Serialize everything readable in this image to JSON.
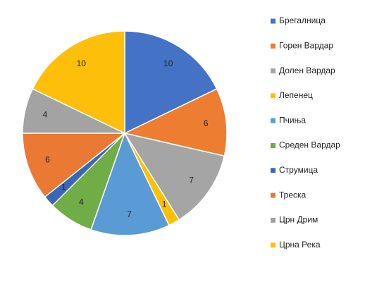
{
  "chart_data": {
    "type": "pie",
    "categories": [
      "Брегалница",
      "Горен Вардар",
      "Долен Вардар",
      "Лепенец",
      "Пчиња",
      "Среден Вардар",
      "Струмица",
      "Треска",
      "Црн Дрим",
      "Црна Река"
    ],
    "values": [
      10,
      6,
      7,
      1,
      7,
      4,
      1,
      6,
      4,
      10
    ],
    "colors": [
      "#4472c4",
      "#ed7d31",
      "#a5a5a5",
      "#ffc000",
      "#5b9bd5",
      "#70ad47",
      "#3a66b8",
      "#ea7a33",
      "#a3a3a3",
      "#fdbf0a"
    ],
    "legend": "right"
  }
}
